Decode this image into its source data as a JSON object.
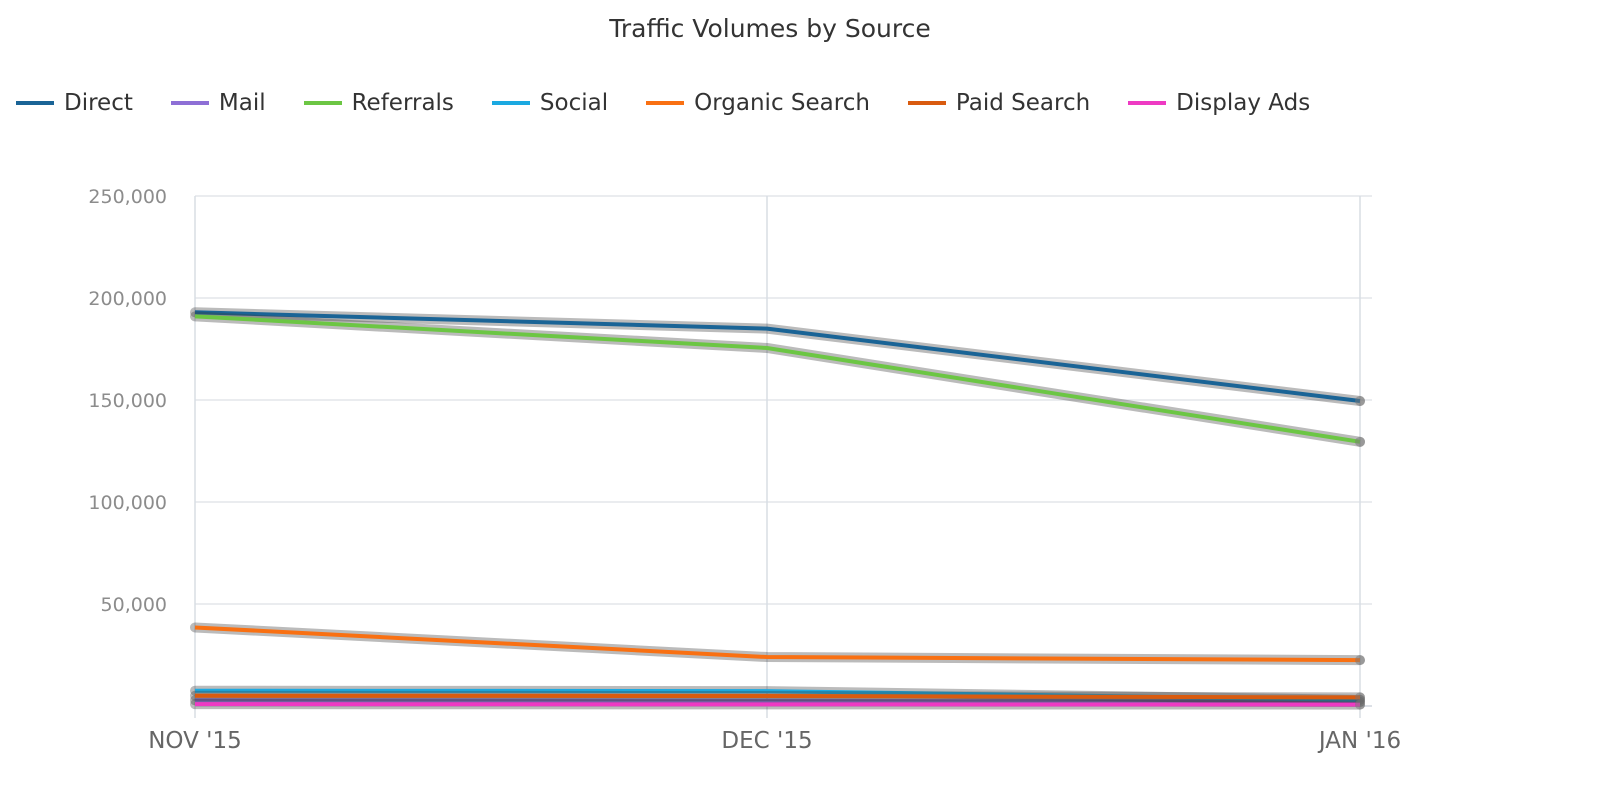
{
  "chart_data": {
    "type": "line",
    "title": "Traffic Volumes by Source",
    "xlabel": "",
    "ylabel": "",
    "categories": [
      "NOV '15",
      "DEC '15",
      "JAN '16"
    ],
    "ylim": [
      0,
      250000
    ],
    "yticks": [
      250000,
      200000,
      150000,
      100000,
      50000
    ],
    "ytick_labels": [
      "250,000",
      "200,000",
      "150,000",
      "100,000",
      "50,000"
    ],
    "grid": true,
    "legend_position": "top-left",
    "series": [
      {
        "name": "Direct",
        "color": "#1a6496",
        "values": [
          193000,
          185000,
          149500
        ]
      },
      {
        "name": "Mail",
        "color": "#8e6fd6",
        "values": [
          2800,
          2600,
          2000
        ]
      },
      {
        "name": "Referrals",
        "color": "#6cc644",
        "values": [
          191000,
          175500,
          129500
        ]
      },
      {
        "name": "Social",
        "color": "#1ba9e1",
        "values": [
          7500,
          7300,
          3000
        ]
      },
      {
        "name": "Organic Search",
        "color": "#f97012",
        "values": [
          38500,
          24000,
          22500
        ]
      },
      {
        "name": "Paid Search",
        "color": "#d95b0f",
        "values": [
          5000,
          4900,
          4200
        ]
      },
      {
        "name": "Display Ads",
        "color": "#ee3ac3",
        "values": [
          900,
          800,
          700
        ]
      }
    ]
  }
}
